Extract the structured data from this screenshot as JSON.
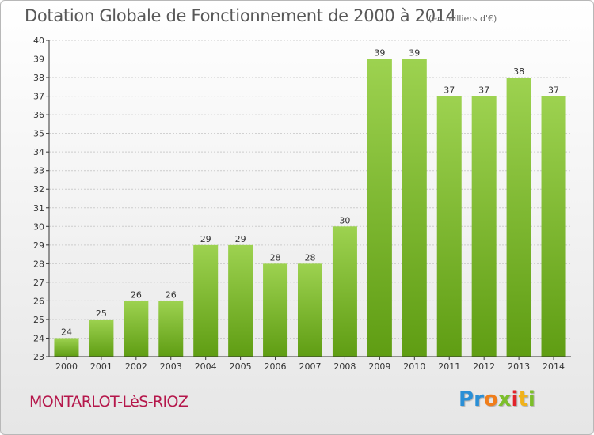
{
  "header": {
    "title": "Dotation Globale de Fonctionnement de 2000 à 2014",
    "unit": "(en milliers d'€)"
  },
  "footer": {
    "commune": "MONTARLOT-LèS-RIOZ",
    "logo_letters": [
      "P",
      "r",
      "o",
      "x",
      "i",
      "t",
      "i"
    ],
    "logo_colors": [
      "#2a8fd6",
      "#2a8fd6",
      "#f07e1b",
      "#7cbf2a",
      "#e2232a",
      "#f0b21b",
      "#7cbf2a"
    ]
  },
  "colors": {
    "bar_light": "#9dd250",
    "bar_dark": "#5f9d13",
    "grid": "#cccccc",
    "axis": "#333333",
    "text": "#333333"
  },
  "chart_data": {
    "type": "bar",
    "title": "Dotation Globale de Fonctionnement de 2000 à 2014",
    "subtitle": "(en milliers d'€)",
    "xlabel": "",
    "ylabel": "",
    "categories": [
      "2000",
      "2001",
      "2002",
      "2003",
      "2004",
      "2005",
      "2006",
      "2007",
      "2008",
      "2009",
      "2010",
      "2011",
      "2012",
      "2013",
      "2014"
    ],
    "values": [
      24,
      25,
      26,
      26,
      29,
      29,
      28,
      28,
      30,
      39,
      39,
      37,
      37,
      38,
      37
    ],
    "data_labels": [
      "24",
      "25",
      "26",
      "26",
      "29",
      "29",
      "28",
      "28",
      "30",
      "39",
      "39",
      "37",
      "37",
      "38",
      "37"
    ],
    "ylim": [
      23,
      40
    ],
    "yticks": [
      "23",
      "24",
      "25",
      "26",
      "27",
      "28",
      "29",
      "30",
      "31",
      "32",
      "33",
      "34",
      "35",
      "36",
      "37",
      "38",
      "39",
      "40"
    ],
    "grid": true
  }
}
